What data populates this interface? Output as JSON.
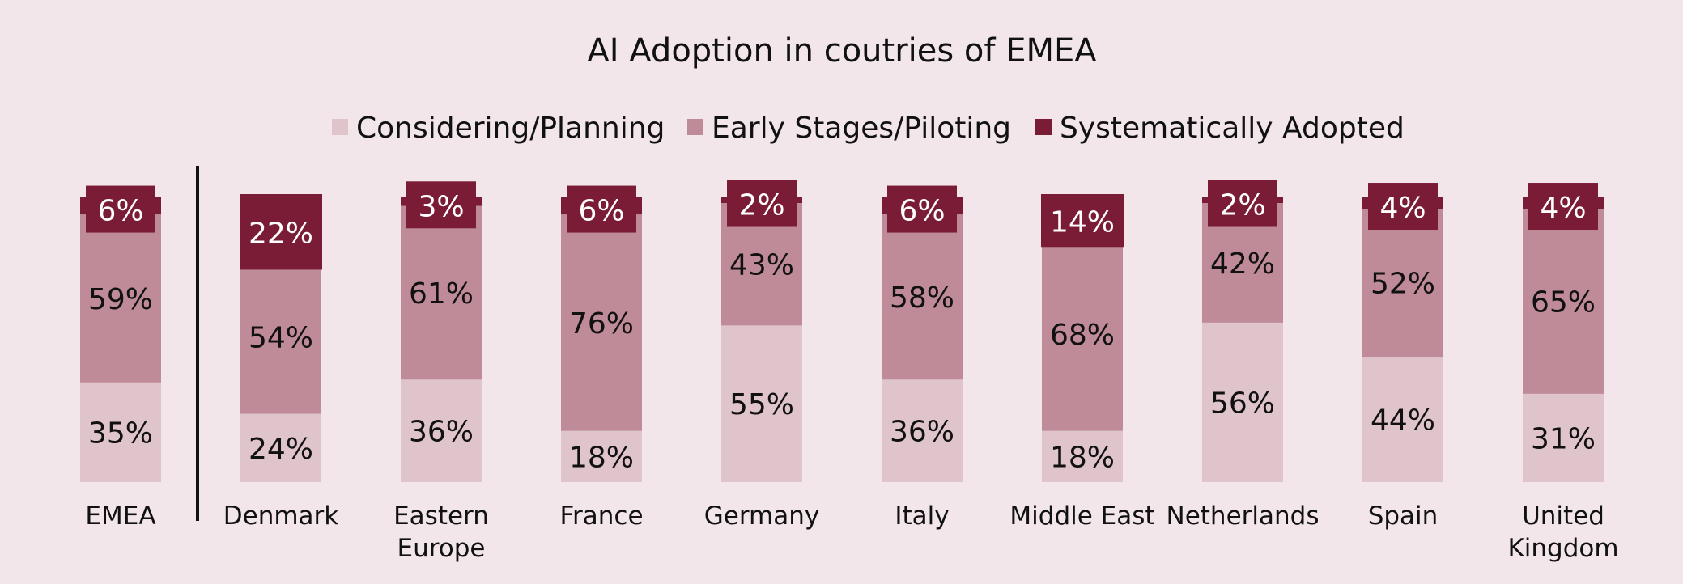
{
  "chart_data": {
    "type": "bar",
    "stacked": true,
    "percent_scale": true,
    "title": "AI Adoption in coutries of EMEA",
    "categories": [
      [
        "EMEA"
      ],
      [
        "Denmark"
      ],
      [
        "Eastern",
        "Europe"
      ],
      [
        "France"
      ],
      [
        "Germany"
      ],
      [
        "Italy"
      ],
      [
        "Middle East"
      ],
      [
        "Netherlands"
      ],
      [
        "Spain"
      ],
      [
        "United",
        "Kingdom"
      ]
    ],
    "series": [
      {
        "name": "Considering/Planning",
        "color": "#dfc4cc",
        "values": [
          35,
          24,
          36,
          18,
          55,
          36,
          18,
          56,
          44,
          31
        ],
        "labels": [
          "35%",
          "24%",
          "36%",
          "18%",
          "55%",
          "36%",
          "18%",
          "56%",
          "44%",
          "31%"
        ]
      },
      {
        "name": "Early Stages/Piloting",
        "color": "#bf8b98",
        "values": [
          59,
          54,
          61,
          76,
          43,
          58,
          68,
          42,
          52,
          65
        ],
        "labels": [
          "59%",
          "54%",
          "61%",
          "76%",
          "43%",
          "58%",
          "68%",
          "42%",
          "52%",
          "65%"
        ]
      },
      {
        "name": "Systematically Adopted",
        "color": "#7b1c36",
        "values": [
          6,
          22,
          3,
          6,
          2,
          6,
          14,
          2,
          4,
          4
        ],
        "labels": [
          "6%",
          "22%",
          "3%",
          "6%",
          "2%",
          "6%",
          "14%",
          "2%",
          "4%",
          "4%"
        ]
      }
    ],
    "separator_after_index": 0,
    "legend_position": "top-center",
    "grid": false,
    "ylim": [
      0,
      100
    ]
  }
}
